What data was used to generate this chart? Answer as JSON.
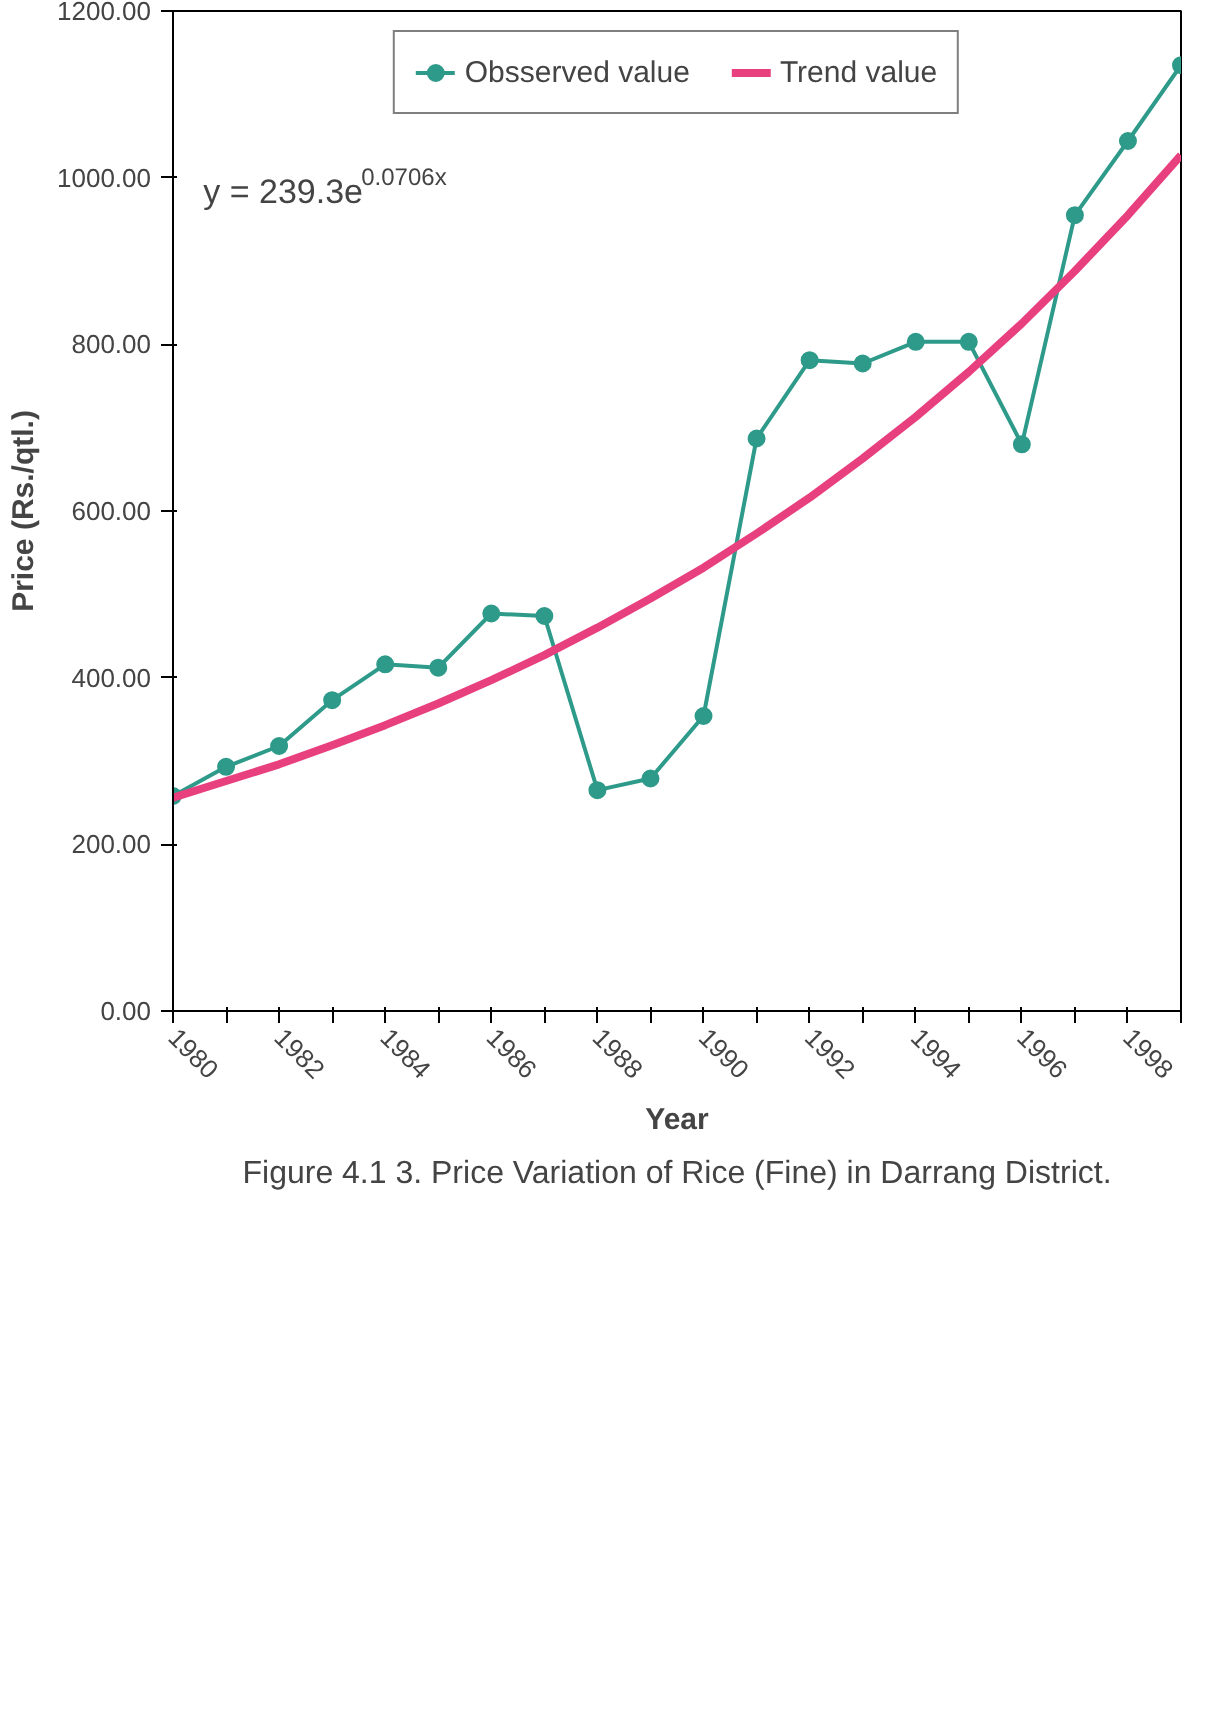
{
  "chart_data": {
    "type": "line",
    "title": "Figure 4.1 3. Price Variation of Rice (Fine) in Darrang District.",
    "xlabel": "Year",
    "ylabel": "Price (Rs./qtl.)",
    "x": [
      1980,
      1981,
      1982,
      1983,
      1984,
      1985,
      1986,
      1987,
      1988,
      1989,
      1990,
      1991,
      1992,
      1993,
      1994,
      1995,
      1996,
      1997,
      1998,
      1999
    ],
    "series": [
      {
        "name": "Obsserved value",
        "color": "#2e9a8a",
        "marker": "circle",
        "values": [
          258,
          293,
          318,
          373,
          416,
          412,
          477,
          474,
          265,
          279,
          354,
          687,
          781,
          777,
          803,
          803,
          680,
          955,
          1044,
          1135
        ]
      },
      {
        "name": "Trend value",
        "type": "line",
        "color": "#e8407f",
        "marker": "none",
        "values": [
          256,
          276,
          296,
          319,
          343,
          369,
          397,
          427,
          460,
          495,
          532,
          573,
          616,
          663,
          713,
          767,
          825,
          888,
          955,
          1027
        ]
      }
    ],
    "xlim": [
      1980,
      1999
    ],
    "xticks": [
      {
        "value": 1980,
        "label": "1980"
      },
      {
        "value": 1981,
        "label": null
      },
      {
        "value": 1982,
        "label": "1982"
      },
      {
        "value": 1983,
        "label": null
      },
      {
        "value": 1984,
        "label": "1984"
      },
      {
        "value": 1985,
        "label": null
      },
      {
        "value": 1986,
        "label": "1986"
      },
      {
        "value": 1987,
        "label": null
      },
      {
        "value": 1988,
        "label": "1988"
      },
      {
        "value": 1989,
        "label": null
      },
      {
        "value": 1990,
        "label": "1990"
      },
      {
        "value": 1991,
        "label": null
      },
      {
        "value": 1992,
        "label": "1992"
      },
      {
        "value": 1993,
        "label": null
      },
      {
        "value": 1994,
        "label": "1994"
      },
      {
        "value": 1995,
        "label": null
      },
      {
        "value": 1996,
        "label": "1996"
      },
      {
        "value": 1997,
        "label": null
      },
      {
        "value": 1998,
        "label": "1998"
      },
      {
        "value": 1999,
        "label": null
      }
    ],
    "ylim": [
      0,
      1200
    ],
    "yticks": [
      {
        "value": 0,
        "label": "0.00"
      },
      {
        "value": 200,
        "label": "200.00"
      },
      {
        "value": 400,
        "label": "400.00"
      },
      {
        "value": 600,
        "label": "600.00"
      },
      {
        "value": 800,
        "label": "800.00"
      },
      {
        "value": 1000,
        "label": "1000.00"
      },
      {
        "value": 1200,
        "label": "1200.00"
      }
    ],
    "annotations": [
      "y = 239.3e$^{0.0706x}$"
    ],
    "grid": false,
    "legend": "top",
    "line_style": "solid"
  }
}
